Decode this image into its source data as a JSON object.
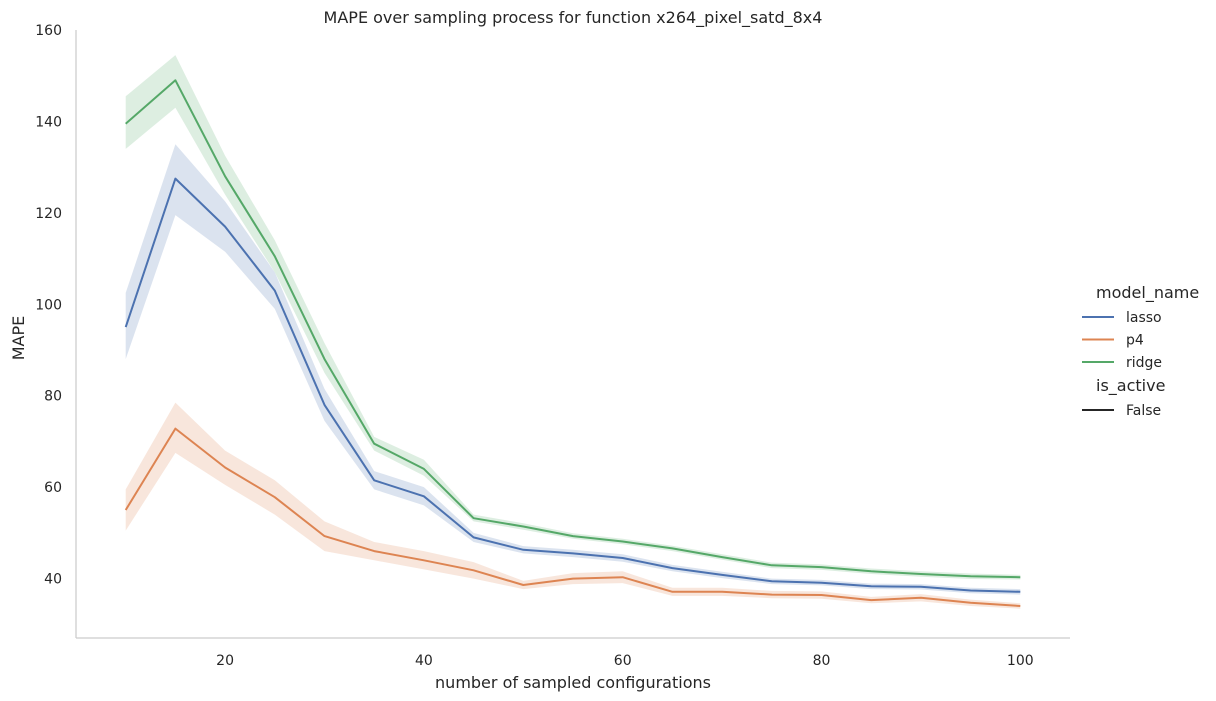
{
  "chart_data": {
    "type": "line",
    "title": "MAPE over sampling process for function x264_pixel_satd_8x4",
    "xlabel": "number of sampled configurations",
    "ylabel": "MAPE",
    "xlim": [
      5,
      105
    ],
    "ylim": [
      27,
      160
    ],
    "xticks": [
      20,
      40,
      60,
      80,
      100
    ],
    "yticks": [
      40,
      60,
      80,
      100,
      120,
      140,
      160
    ],
    "grid": false,
    "legend": {
      "position": "right",
      "hue_title": "model_name",
      "style_title": "is_active",
      "style_entries": [
        "False"
      ]
    },
    "x": [
      10,
      15,
      20,
      25,
      30,
      35,
      40,
      45,
      50,
      55,
      60,
      65,
      70,
      75,
      80,
      85,
      90,
      95,
      100
    ],
    "series": [
      {
        "name": "lasso",
        "color": "#4c72b0",
        "values": [
          95,
          127.5,
          117,
          103,
          78,
          61.5,
          58,
          49,
          46.3,
          45.5,
          44.5,
          42.3,
          40.8,
          39.4,
          39.1,
          38.3,
          38.2,
          37.4,
          37.1
        ],
        "lower": [
          88,
          119.5,
          111.5,
          99,
          74.5,
          59.5,
          56,
          48,
          45.5,
          44.7,
          43.7,
          41.6,
          40.1,
          38.8,
          38.5,
          37.7,
          37.6,
          36.8,
          36.5
        ],
        "upper": [
          102.5,
          135,
          122.5,
          107,
          81.5,
          63.5,
          60,
          50,
          47.1,
          46.3,
          45.3,
          43,
          41.5,
          40,
          39.7,
          38.9,
          38.8,
          38,
          37.7
        ]
      },
      {
        "name": "p4",
        "color": "#dd8452",
        "values": [
          55,
          72.8,
          64.3,
          57.8,
          49.3,
          46,
          44,
          41.8,
          38.6,
          40,
          40.3,
          37.1,
          37.1,
          36.5,
          36.4,
          35.3,
          35.8,
          34.7,
          34
        ],
        "lower": [
          50.5,
          67.5,
          60.5,
          54,
          46,
          44,
          42,
          40,
          37.7,
          38.8,
          39,
          36.2,
          36.2,
          35.7,
          35.6,
          34.6,
          35,
          34,
          33.4
        ],
        "upper": [
          59.5,
          78.5,
          68,
          61.5,
          52.5,
          48,
          46,
          43.6,
          39.5,
          41.2,
          41.6,
          38,
          38,
          37.3,
          37.2,
          36,
          36.6,
          35.4,
          34.6
        ]
      },
      {
        "name": "ridge",
        "color": "#55a868",
        "values": [
          139.5,
          149,
          128,
          110.5,
          88,
          69.5,
          64,
          53.2,
          51.4,
          49.3,
          48.1,
          46.6,
          44.7,
          42.9,
          42.5,
          41.6,
          41,
          40.5,
          40.3
        ],
        "lower": [
          134,
          143,
          124,
          107,
          85,
          68,
          62.5,
          52.5,
          50.7,
          48.7,
          47.5,
          46,
          44.1,
          42.3,
          41.9,
          41,
          40.4,
          39.9,
          39.8
        ],
        "upper": [
          145.5,
          154.5,
          132.5,
          114,
          91.5,
          71,
          66,
          54,
          52.1,
          49.9,
          48.7,
          47.2,
          45.3,
          43.5,
          43.1,
          42.2,
          41.6,
          41.1,
          40.8
        ]
      }
    ]
  }
}
